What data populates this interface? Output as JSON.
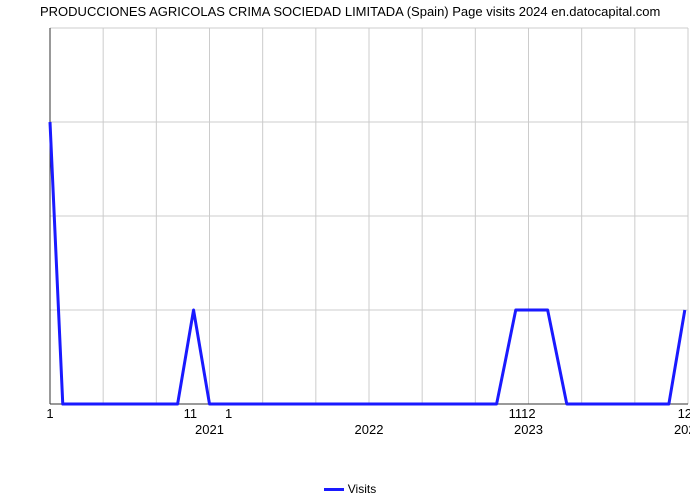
{
  "chart": {
    "type": "line",
    "title": "PRODUCCIONES AGRICOLAS CRIMA SOCIEDAD LIMITADA (Spain) Page visits 2024 en.datocapital.com",
    "title_fontsize": 13,
    "background_color": "#ffffff",
    "grid_color": "#cccccc",
    "axis_color": "#333333",
    "line_color": "#1a1aff",
    "line_width": 3,
    "y_axis": {
      "min": 0,
      "max": 4,
      "ticks": [
        0,
        1,
        2,
        3,
        4
      ],
      "fontsize": 13
    },
    "x_axis": {
      "ticks_bottom": [
        "1",
        "11",
        "1",
        "1112",
        "12"
      ],
      "ticks_bottom_positions": [
        0,
        0.22,
        0.28,
        0.74,
        0.995
      ],
      "year_labels": [
        "2021",
        "2022",
        "2023",
        "202"
      ],
      "year_positions": [
        0.25,
        0.5,
        0.75,
        0.995
      ],
      "fontsize": 13
    },
    "vertical_grid_count": 13,
    "data_points": [
      {
        "x": 0.0,
        "y": 3.0
      },
      {
        "x": 0.02,
        "y": 0.0
      },
      {
        "x": 0.2,
        "y": 0.0
      },
      {
        "x": 0.225,
        "y": 1.0
      },
      {
        "x": 0.25,
        "y": 0.0
      },
      {
        "x": 0.7,
        "y": 0.0
      },
      {
        "x": 0.73,
        "y": 1.0
      },
      {
        "x": 0.78,
        "y": 1.0
      },
      {
        "x": 0.81,
        "y": 0.0
      },
      {
        "x": 0.97,
        "y": 0.0
      },
      {
        "x": 0.995,
        "y": 1.0
      }
    ],
    "legend": {
      "label": "Visits",
      "color": "#1a1aff"
    }
  }
}
